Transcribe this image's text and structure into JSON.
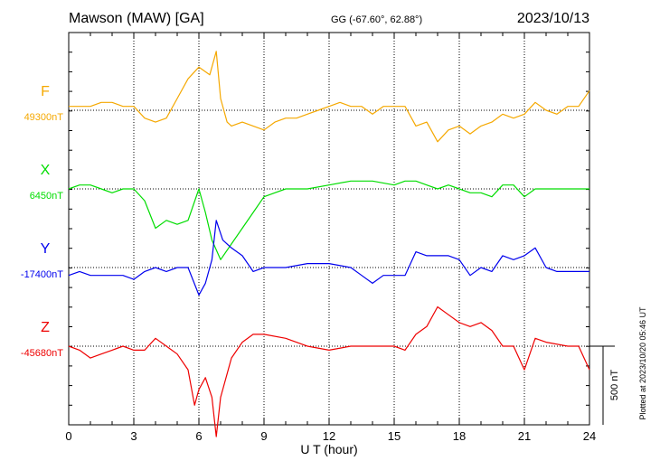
{
  "header": {
    "station": "Mawson (MAW)  [GA]",
    "coords": "GG (-67.60°,  62.88°)",
    "date": "2023/10/13"
  },
  "side_note": "Plotted at 2023/10/20 05:46 UT",
  "scale_label": "500 nT",
  "colors": {
    "F": "#f5a800",
    "X": "#00dd00",
    "Y": "#0000ee",
    "Z": "#ee0000"
  },
  "chart_data": {
    "type": "line",
    "xlabel": "U T (hour)",
    "xlim": [
      0,
      24
    ],
    "x_ticks": [
      "0",
      "3",
      "6",
      "9",
      "12",
      "15",
      "18",
      "21",
      "24"
    ],
    "grid": true,
    "scale_bar_nT": 500,
    "series": [
      {
        "name": "F",
        "baseline_label": "49300nT",
        "baseline_nT": 49300,
        "x": [
          0,
          0.5,
          1,
          1.5,
          2,
          2.5,
          3,
          3.5,
          4,
          4.5,
          5,
          5.5,
          6,
          6.5,
          6.8,
          7,
          7.3,
          7.5,
          8,
          8.5,
          9,
          9.5,
          10,
          10.5,
          11,
          11.5,
          12,
          12.5,
          13,
          13.5,
          14,
          14.5,
          15,
          15.5,
          16,
          16.5,
          17,
          17.5,
          18,
          18.5,
          19,
          19.5,
          20,
          20.5,
          21,
          21.5,
          22,
          22.5,
          23,
          23.5,
          24
        ],
        "y": [
          25,
          25,
          25,
          50,
          50,
          25,
          25,
          -50,
          -75,
          -50,
          75,
          200,
          275,
          225,
          375,
          75,
          -75,
          -100,
          -75,
          -100,
          -125,
          -75,
          -50,
          -50,
          -25,
          0,
          25,
          50,
          25,
          25,
          -25,
          25,
          25,
          25,
          -100,
          -75,
          -200,
          -125,
          -100,
          -150,
          -100,
          -75,
          -25,
          -50,
          -25,
          50,
          0,
          -25,
          25,
          25,
          125
        ]
      },
      {
        "name": "X",
        "baseline_label": "6450nT",
        "baseline_nT": 6450,
        "x": [
          0,
          0.5,
          1,
          1.5,
          2,
          2.5,
          3,
          3.5,
          4,
          4.5,
          5,
          5.5,
          6,
          6.3,
          6.6,
          7,
          7.5,
          8,
          8.5,
          9,
          9.5,
          10,
          11,
          12,
          13,
          14,
          15,
          15.5,
          16,
          16.5,
          17,
          17.5,
          18,
          18.5,
          19,
          19.5,
          20,
          20.5,
          21,
          21.5,
          22,
          23,
          24
        ],
        "y": [
          0,
          25,
          25,
          0,
          -25,
          0,
          0,
          -75,
          -250,
          -200,
          -225,
          -200,
          0,
          -150,
          -325,
          -450,
          -350,
          -250,
          -150,
          -50,
          -25,
          0,
          0,
          25,
          50,
          50,
          25,
          50,
          50,
          25,
          0,
          25,
          0,
          -25,
          -25,
          -50,
          25,
          25,
          -50,
          0,
          0,
          0,
          0
        ]
      },
      {
        "name": "Y",
        "baseline_label": "-17400nT",
        "baseline_nT": -17400,
        "x": [
          0,
          0.5,
          1,
          1.5,
          2,
          2.5,
          3,
          3.5,
          4,
          4.5,
          5,
          5.5,
          6,
          6.3,
          6.6,
          6.8,
          7.1,
          7.5,
          8,
          8.5,
          9,
          10,
          11,
          12,
          13,
          13.5,
          14,
          14.5,
          15,
          15.5,
          16,
          16.5,
          17,
          17.5,
          18,
          18.5,
          19,
          19.5,
          20,
          20.5,
          21,
          21.5,
          22,
          22.5,
          23,
          24
        ],
        "y": [
          -50,
          -25,
          -50,
          -50,
          -50,
          -50,
          -75,
          -25,
          0,
          -25,
          0,
          0,
          -175,
          -100,
          50,
          300,
          175,
          125,
          75,
          -25,
          0,
          0,
          25,
          25,
          0,
          -50,
          -100,
          -50,
          -50,
          -50,
          100,
          75,
          75,
          75,
          50,
          -50,
          0,
          -25,
          75,
          50,
          75,
          125,
          0,
          -25,
          -25,
          -25
        ]
      },
      {
        "name": "Z",
        "baseline_label": "-45680nT",
        "baseline_nT": -45680,
        "x": [
          0,
          0.5,
          1,
          1.5,
          2,
          2.5,
          3,
          3.5,
          4,
          4.5,
          5,
          5.5,
          5.8,
          6,
          6.3,
          6.6,
          6.8,
          7,
          7.5,
          8,
          8.5,
          9,
          10,
          11,
          12,
          13,
          14,
          15,
          15.5,
          16,
          16.5,
          17,
          17.5,
          18,
          18.5,
          19,
          19.5,
          20,
          20.5,
          21,
          21.5,
          22,
          23,
          23.5,
          24
        ],
        "y": [
          0,
          -25,
          -75,
          -50,
          -25,
          0,
          -25,
          -25,
          50,
          0,
          -50,
          -150,
          -375,
          -275,
          -200,
          -325,
          -575,
          -325,
          -75,
          25,
          75,
          75,
          50,
          0,
          -25,
          0,
          0,
          0,
          -25,
          75,
          125,
          250,
          200,
          150,
          125,
          150,
          100,
          0,
          0,
          -150,
          50,
          25,
          0,
          0,
          -150
        ]
      }
    ]
  }
}
